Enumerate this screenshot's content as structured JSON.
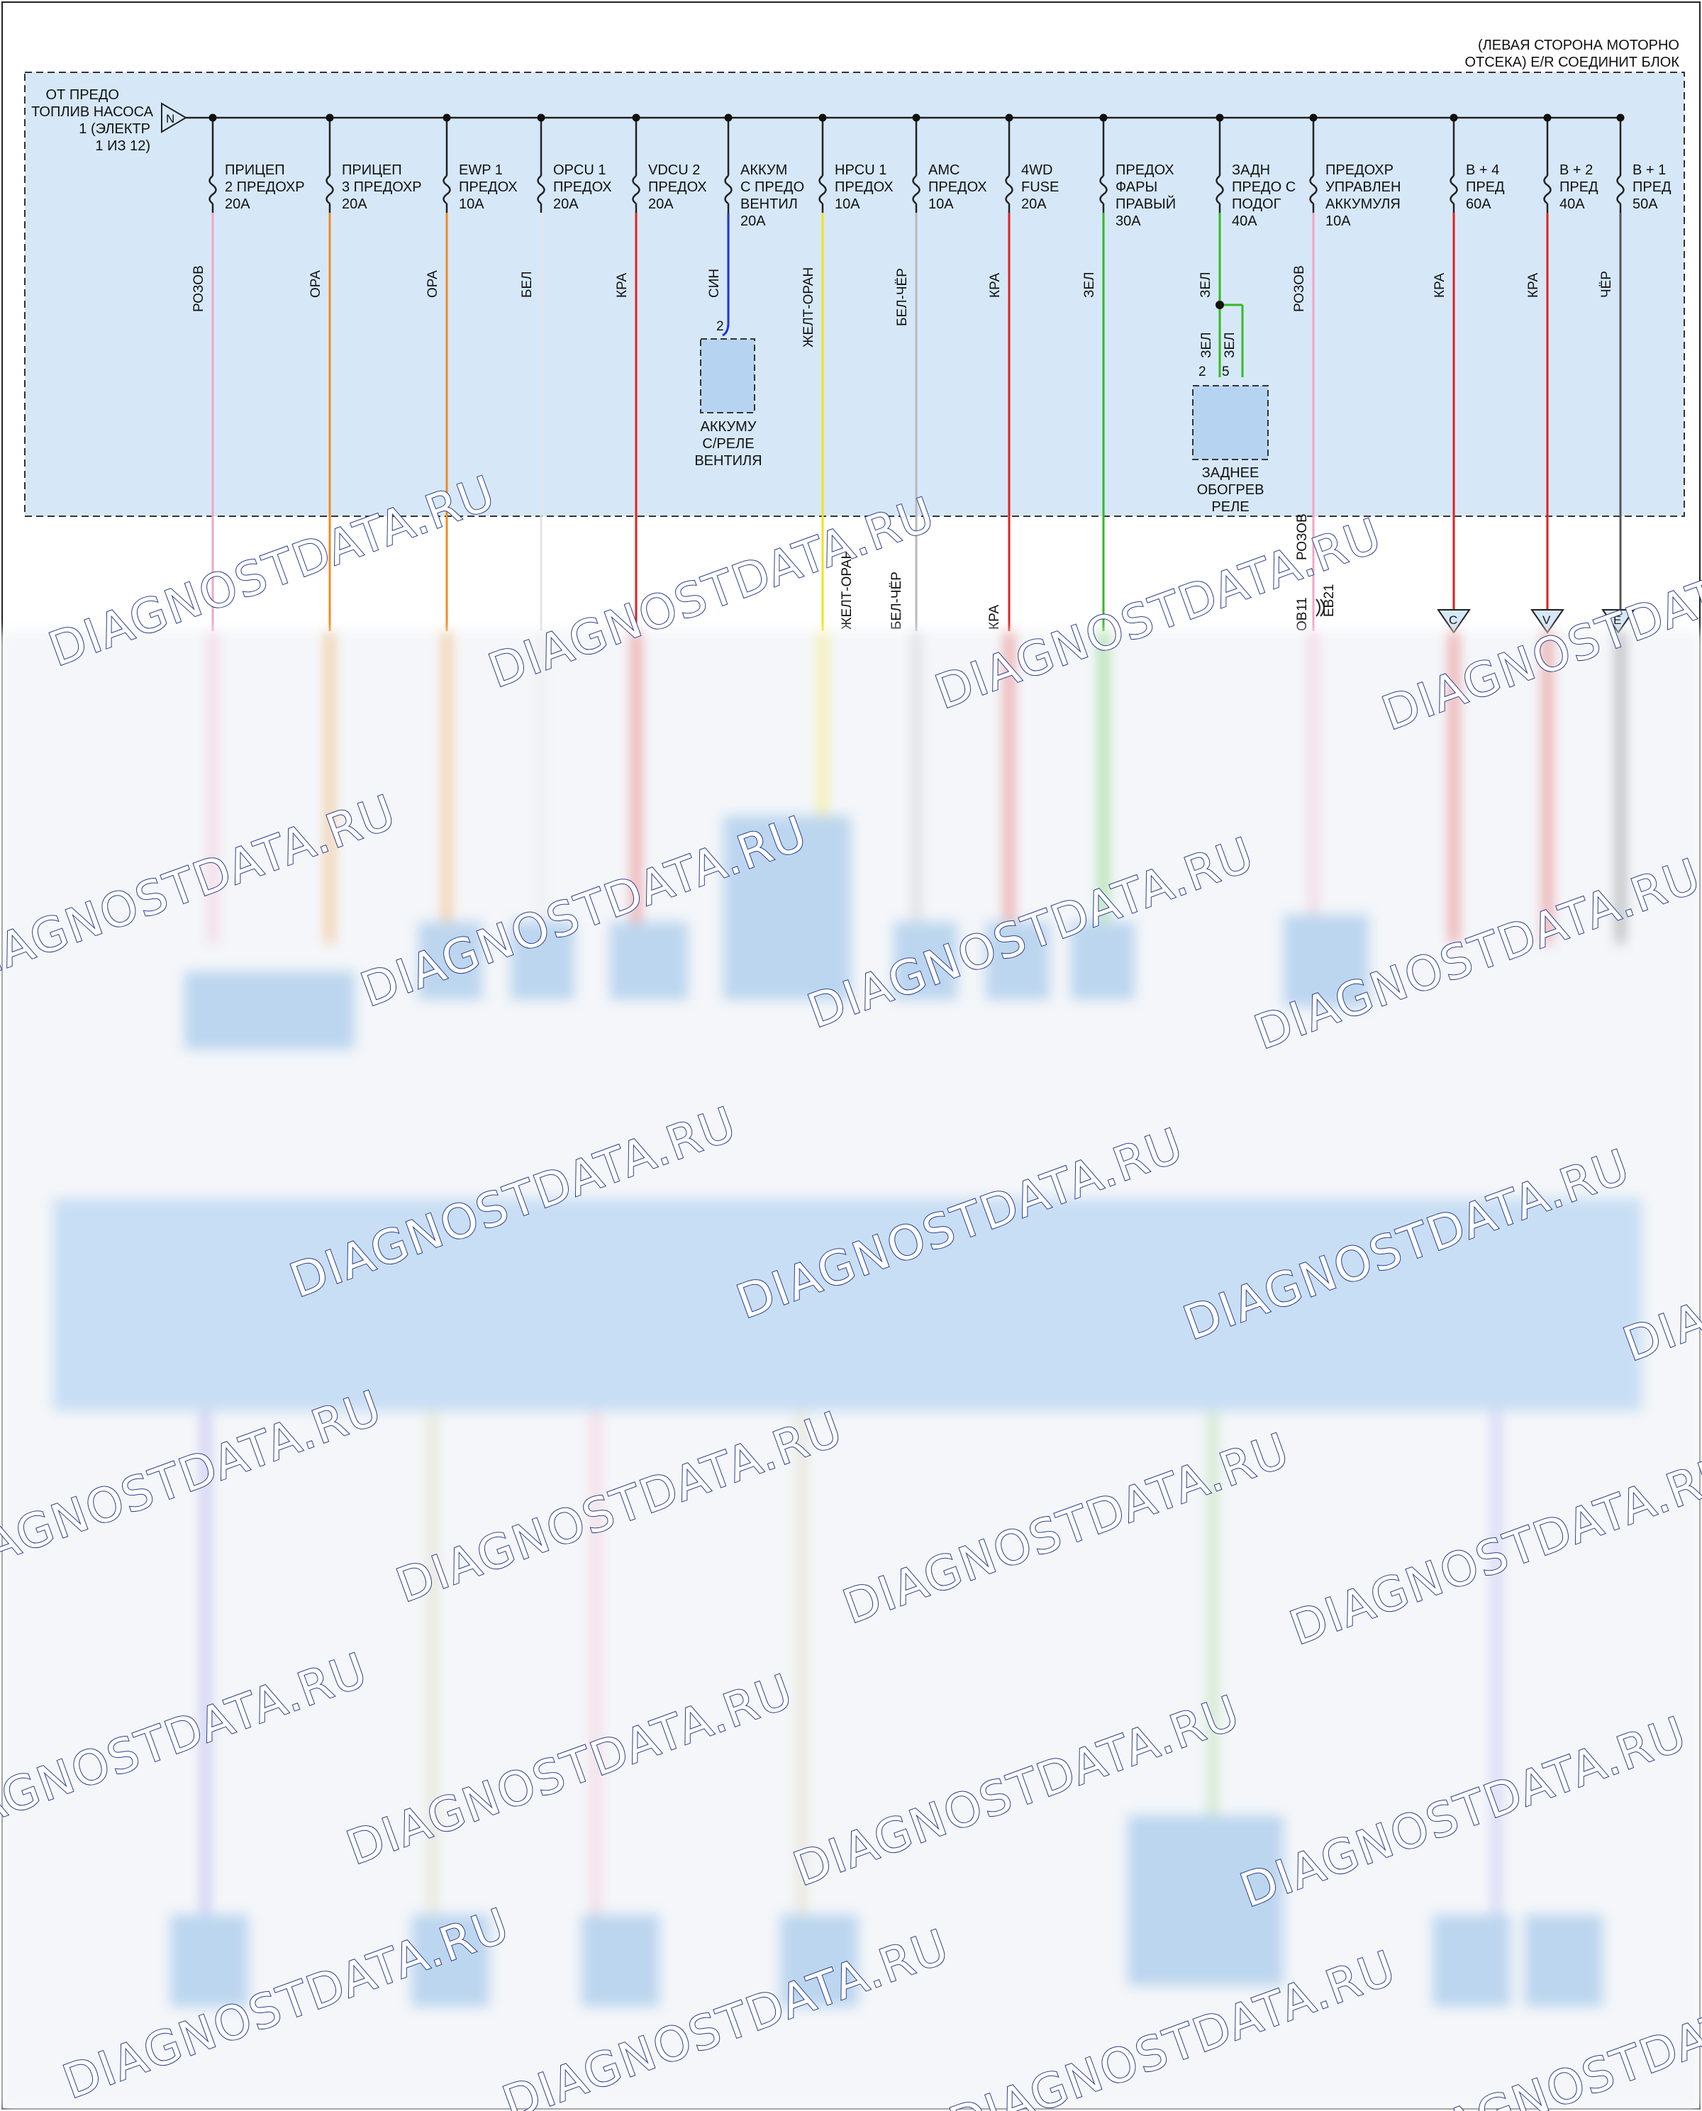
{
  "header_note": [
    "(ЛЕВАЯ СТОРОНА МОТОРНО",
    "ОТСЕКА) E/R СОЕДИНИТ БЛОК"
  ],
  "source_note": [
    "ОТ ПРЕДО",
    "ТОПЛИВ НАСОСА",
    "1 (ЭЛЕКТР",
    "1 ИЗ 12)"
  ],
  "source_tag": "N",
  "fuses": [
    {
      "id": "f1",
      "label": [
        "ПРИЦЕП",
        "2 ПРЕДОХР"
      ],
      "rating": "20А",
      "wire": "РОЗОВ",
      "color": "#f2a5c4"
    },
    {
      "id": "f2",
      "label": [
        "ПРИЦЕП",
        "3 ПРЕДОХР"
      ],
      "rating": "20А",
      "wire": "ОРА",
      "color": "#f08a20"
    },
    {
      "id": "f3",
      "label": [
        "EWP 1",
        "ПРЕДОХ"
      ],
      "rating": "10А",
      "wire": "ОРА",
      "color": "#f08a20"
    },
    {
      "id": "f4",
      "label": [
        "OPCU 1",
        "ПРЕДОХ"
      ],
      "rating": "20А",
      "wire": "БЕЛ",
      "color": "#e4e4e4"
    },
    {
      "id": "f5",
      "label": [
        "VDCU 2",
        "ПРЕДОХ"
      ],
      "rating": "20А",
      "wire": "КРА",
      "color": "#e02020"
    },
    {
      "id": "f6",
      "label": [
        "АККУМ",
        "С ПРЕДО",
        "ВЕНТИЛ"
      ],
      "rating": "20А",
      "wire": "СИН",
      "color": "#2233cc"
    },
    {
      "id": "f7",
      "label": [
        "HPCU 1",
        "ПРЕДОХ"
      ],
      "rating": "10А",
      "wire": "ЖЕЛТ-ОРАН",
      "color": "#f2e21a"
    },
    {
      "id": "f8",
      "label": [
        "AMC",
        "ПРЕДОХ"
      ],
      "rating": "10А",
      "wire": "БЕЛ-ЧЁР",
      "color": "#b8b8b8"
    },
    {
      "id": "f9",
      "label": [
        "4WD",
        "FUSE"
      ],
      "rating": "20А",
      "wire": "КРА",
      "color": "#e02020"
    },
    {
      "id": "f10",
      "label": [
        "ПРЕДОХ",
        "ФАРЫ",
        "ПРАВЫЙ"
      ],
      "rating": "30А",
      "wire": "ЗЕЛ",
      "color": "#33bb22"
    },
    {
      "id": "f11",
      "label": [
        "ЗАДН",
        "ПРЕДО С",
        "ПОДОГ"
      ],
      "rating": "40А",
      "wire": "ЗЕЛ",
      "color": "#33bb22"
    },
    {
      "id": "f12",
      "label": [
        "ПРЕДОХР",
        "УПРАВЛЕН",
        "АККУМУЛЯ"
      ],
      "rating": "10А",
      "wire": "РОЗОВ",
      "color": "#f2a5c4"
    },
    {
      "id": "f13",
      "label": [
        "B + 4",
        "ПРЕД"
      ],
      "rating": "60А",
      "wire": "КРА",
      "color": "#e02020"
    },
    {
      "id": "f14",
      "label": [
        "B + 2",
        "ПРЕД"
      ],
      "rating": "40А",
      "wire": "КРА",
      "color": "#e02020"
    },
    {
      "id": "f15",
      "label": [
        "B + 1",
        "ПРЕД"
      ],
      "rating": "50А",
      "wire": "ЧЁР",
      "color": "#555555"
    }
  ],
  "relay_valve": {
    "pin": "2",
    "label": [
      "АККУМУ",
      "С/РЕЛЕ",
      "ВЕНТИЛЯ"
    ]
  },
  "relay_heater": {
    "pin_a": "2",
    "pin_b": "5",
    "wire_a": "ЗЕЛ",
    "wire_b": "ЗЕЛ",
    "label": [
      "ЗАДНЕЕ",
      "ОБОГРЕВ",
      "РЕЛЕ"
    ]
  },
  "lower_wire_labels": {
    "yellow": "ЖЕЛТ-ОРАН",
    "graywhite": "БЕЛ-ЧЁР",
    "red": "КРА",
    "pink": "РОЗОВ",
    "pink_partial": "ОВ",
    "pin": "11",
    "connector": "EB21"
  },
  "offpage_tags": [
    "C",
    "V",
    "E"
  ],
  "watermark": "DIAGNOSTDATA.RU"
}
